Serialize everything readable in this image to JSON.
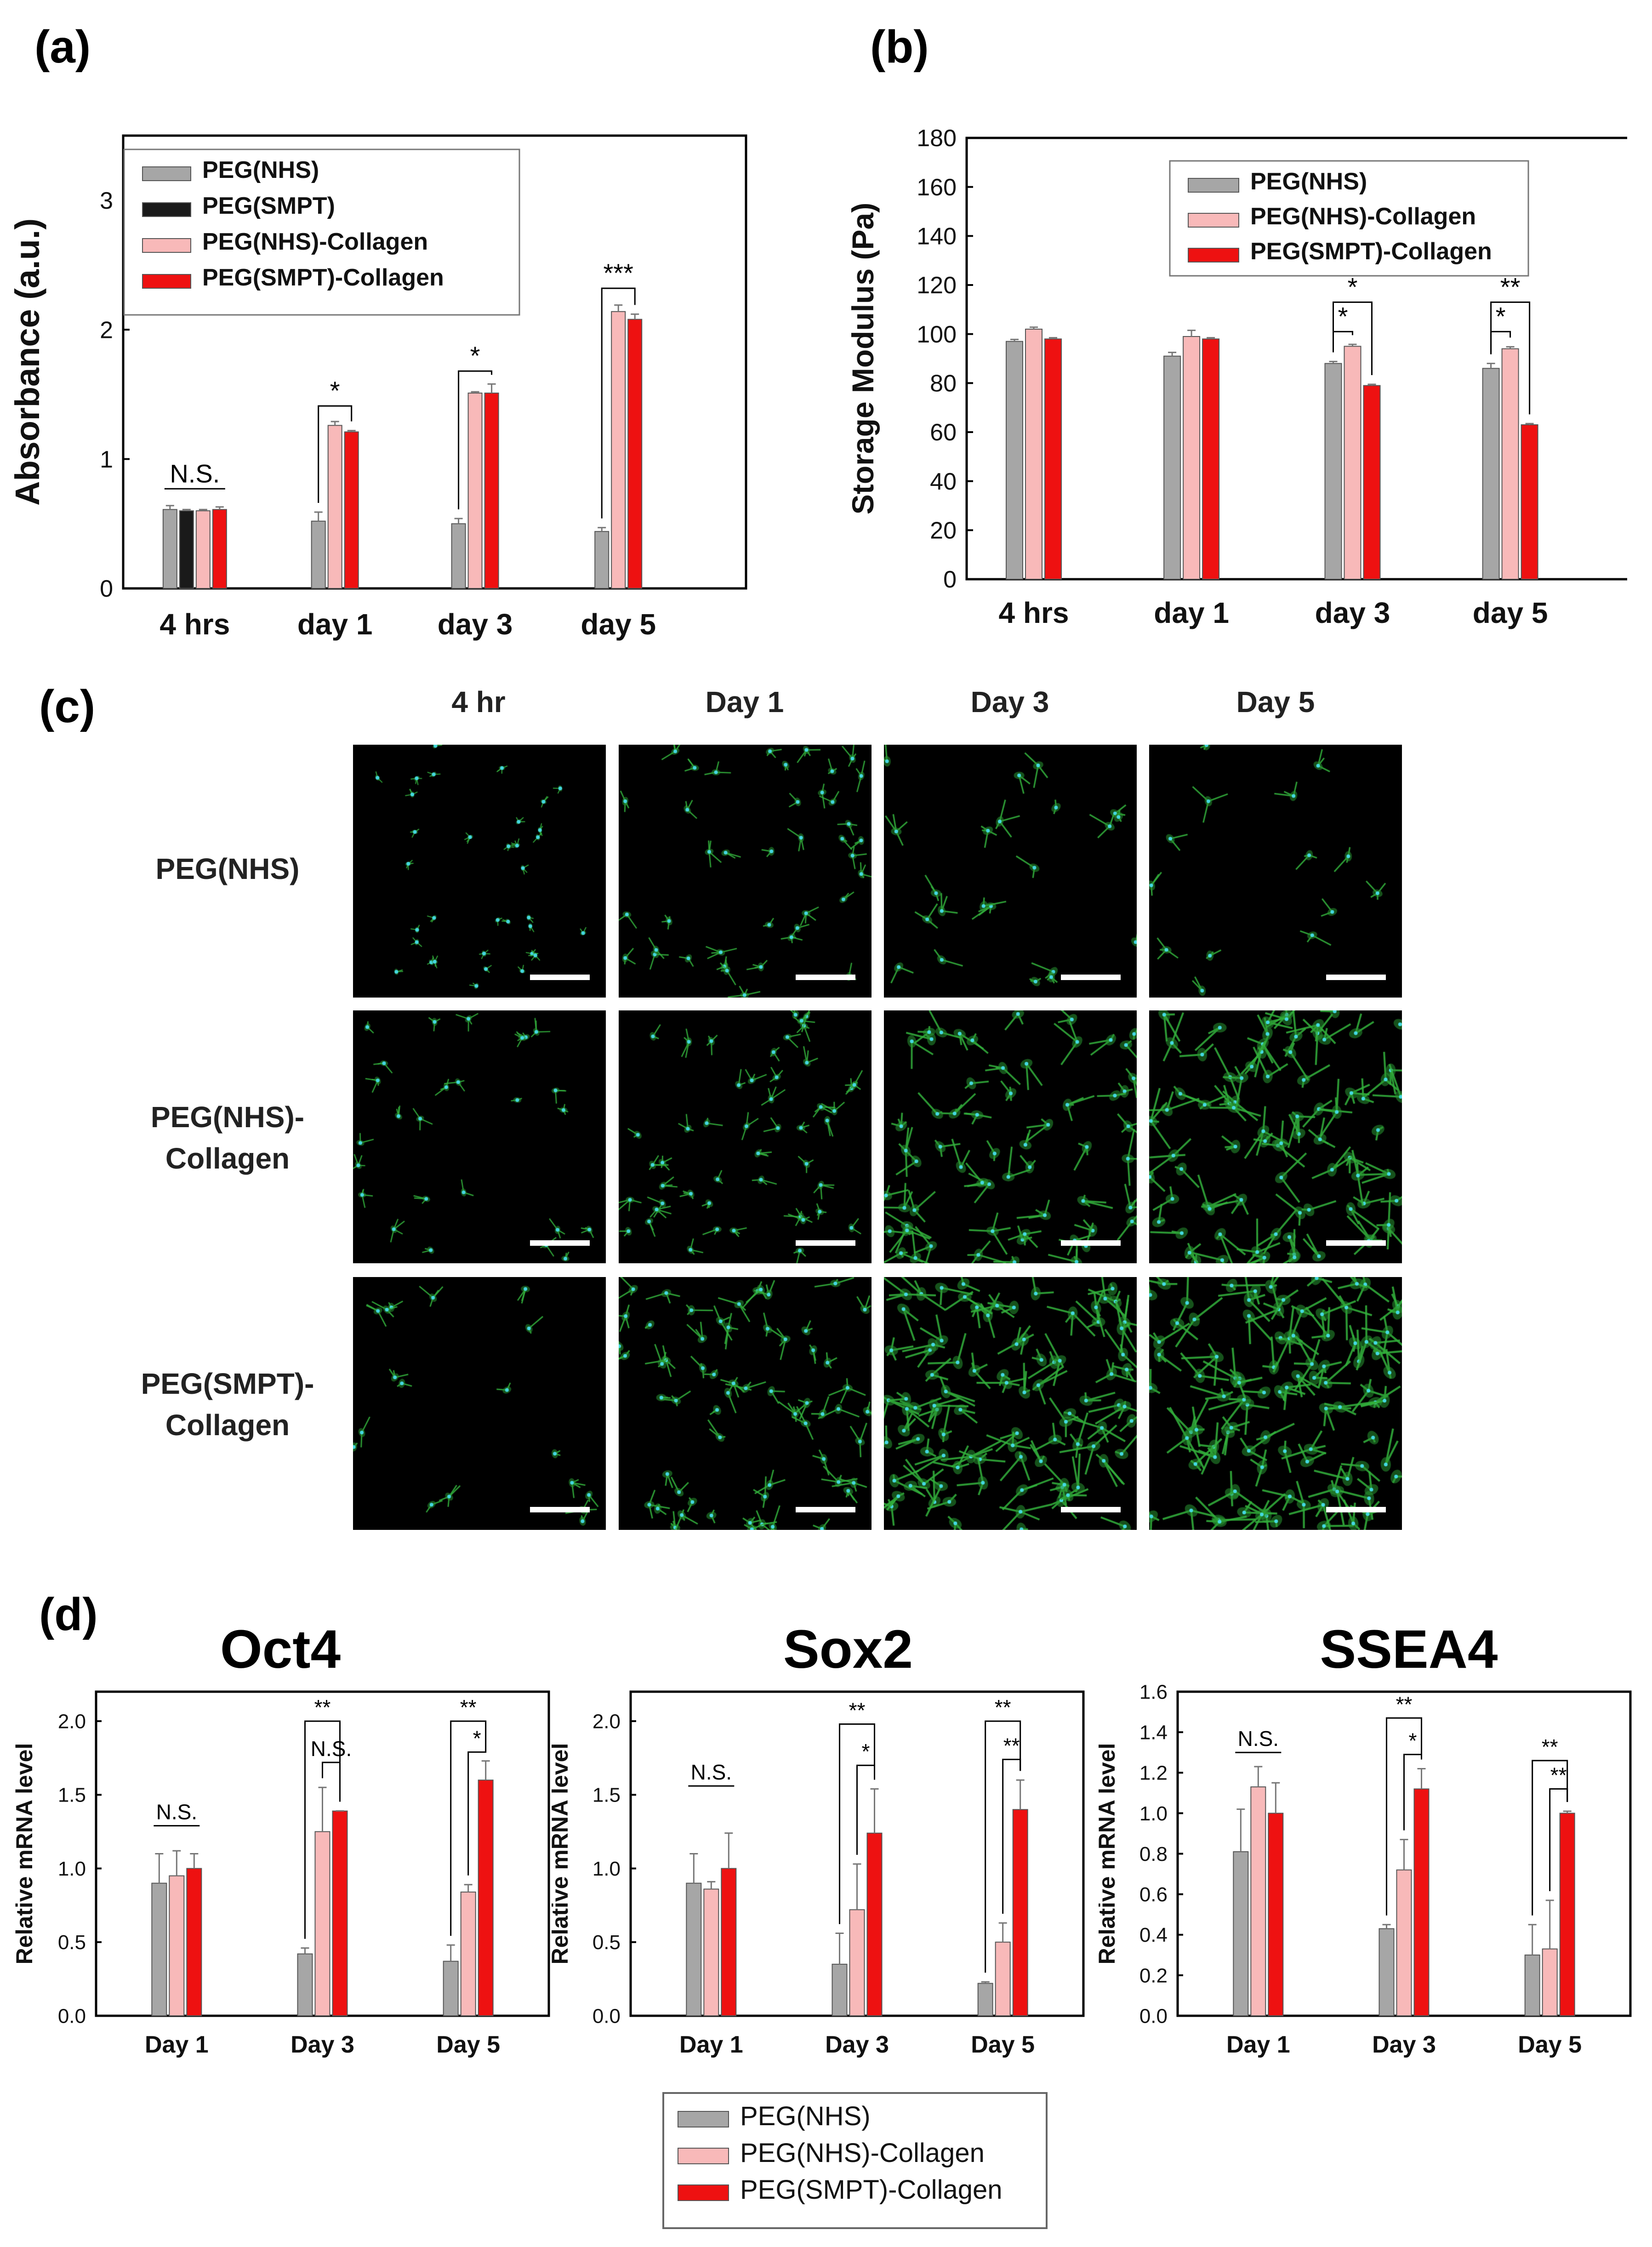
{
  "panels": {
    "a": "(a)",
    "b": "(b)",
    "c": "(c)",
    "d": "(d)"
  },
  "colors": {
    "peg_nhs": "#a6a6a6",
    "peg_smpt": "#1a1a1a",
    "peg_nhs_collagen": "#f8b9b9",
    "peg_smpt_collagen": "#ee1111",
    "cell_green": "#2fae3a",
    "nucleus_cyan": "#3fd6e6"
  },
  "chart_data": [
    {
      "id": "a",
      "type": "bar",
      "categories": [
        "4 hrs",
        "day 1",
        "day 3",
        "day 5"
      ],
      "ylabel": "Absorbance (a.u.)",
      "xlabel": "",
      "ylim": [
        0,
        3.5
      ],
      "yticks": [
        0,
        1,
        2,
        3
      ],
      "ytick_labels": [
        "0",
        "1",
        "2",
        "3"
      ],
      "legend": "top-left",
      "series": [
        {
          "name": "PEG(NHS)",
          "color": "#a6a6a6",
          "values": [
            0.61,
            0.52,
            0.5,
            0.44
          ],
          "errors": [
            0.03,
            0.07,
            0.04,
            0.03
          ]
        },
        {
          "name": "PEG(SMPT)",
          "color": "#1a1a1a",
          "values": [
            0.6,
            null,
            null,
            null
          ],
          "errors": [
            0.01,
            null,
            null,
            null
          ]
        },
        {
          "name": "PEG(NHS)-Collagen",
          "color": "#f8b9b9",
          "values": [
            0.6,
            1.26,
            1.51,
            2.14
          ],
          "errors": [
            0.01,
            0.03,
            0.01,
            0.05
          ]
        },
        {
          "name": "PEG(SMPT)-Collagen",
          "color": "#ee1111",
          "values": [
            0.61,
            1.21,
            1.51,
            2.08
          ],
          "errors": [
            0.02,
            0.01,
            0.07,
            0.04
          ]
        }
      ],
      "annotations": [
        {
          "type": "line",
          "text": "N.S.",
          "group": 0,
          "from": 0,
          "to": 3,
          "y": 0.77
        },
        {
          "type": "bracket",
          "text": "*",
          "group": 1,
          "from": 0,
          "to": 2,
          "y": 1.41
        },
        {
          "type": "bracket",
          "text": "*",
          "group": 1,
          "from": 0,
          "to": 3,
          "y": 1.63
        },
        {
          "type": "bracket",
          "text": "*",
          "group": 2,
          "from": 0,
          "to": 2,
          "y": 1.68
        },
        {
          "type": "bracket",
          "text": "*",
          "group": 2,
          "from": 0,
          "to": 3,
          "y": 1.9
        },
        {
          "type": "bracket",
          "text": "***",
          "group": 3,
          "from": 0,
          "to": 2,
          "y": 2.32
        },
        {
          "type": "bracket",
          "text": "***",
          "group": 3,
          "from": 0,
          "to": 3,
          "y": 2.6
        }
      ]
    },
    {
      "id": "b",
      "type": "bar",
      "categories": [
        "4 hrs",
        "day 1",
        "day 3",
        "day 5"
      ],
      "ylabel": "Storage Modulus (Pa)",
      "xlabel": "",
      "ylim": [
        0,
        180
      ],
      "yticks": [
        0,
        20,
        40,
        60,
        80,
        100,
        120,
        140,
        160,
        180
      ],
      "ytick_labels": [
        "0",
        "20",
        "40",
        "60",
        "80",
        "100",
        "120",
        "140",
        "160",
        "180"
      ],
      "legend": "top-right",
      "series": [
        {
          "name": "PEG(NHS)",
          "color": "#a6a6a6",
          "values": [
            97,
            91,
            88,
            86
          ],
          "errors": [
            0.8,
            1.5,
            0.8,
            2
          ]
        },
        {
          "name": "PEG(NHS)-Collagen",
          "color": "#f8b9b9",
          "values": [
            102,
            99,
            95,
            94
          ],
          "errors": [
            0.8,
            2.5,
            0.8,
            0.8
          ]
        },
        {
          "name": "PEG(SMPT)-Collagen",
          "color": "#ee1111",
          "values": [
            98,
            98,
            79,
            63
          ],
          "errors": [
            0.5,
            0.5,
            0.5,
            0.5
          ]
        }
      ],
      "annotations": [
        {
          "type": "bracket",
          "text": "*",
          "group": 2,
          "from": 0,
          "to": 1,
          "y": 101
        },
        {
          "type": "bracket",
          "text": "*",
          "group": 2,
          "from": 0,
          "to": 2,
          "y": 113
        },
        {
          "type": "bracket",
          "text": "*",
          "group": 3,
          "from": 0,
          "to": 1,
          "y": 101
        },
        {
          "type": "bracket",
          "text": "**",
          "group": 3,
          "from": 0,
          "to": 2,
          "y": 113
        }
      ]
    },
    {
      "id": "d1",
      "type": "bar",
      "title": "Oct4",
      "categories": [
        "Day 1",
        "Day 3",
        "Day 5"
      ],
      "ylabel": "Relative mRNA level",
      "xlabel": "",
      "ylim": [
        0,
        2.2
      ],
      "yticks": [
        0,
        0.5,
        1,
        1.5,
        2
      ],
      "ytick_labels": [
        "0.0",
        "0.5",
        "1.0",
        "1.5",
        "2.0"
      ],
      "series": [
        {
          "name": "PEG(NHS)",
          "color": "#a6a6a6",
          "values": [
            0.9,
            0.42,
            0.37
          ],
          "errors": [
            0.2,
            0.04,
            0.11
          ]
        },
        {
          "name": "PEG(NHS)-Collagen",
          "color": "#f8b9b9",
          "values": [
            0.95,
            1.25,
            0.84
          ],
          "errors": [
            0.17,
            0.3,
            0.05
          ]
        },
        {
          "name": "PEG(SMPT)-Collagen",
          "color": "#ee1111",
          "values": [
            1.0,
            1.39,
            1.6
          ],
          "errors": [
            0.1,
            0.001,
            0.13
          ]
        }
      ],
      "annotations": [
        {
          "type": "line",
          "text": "N.S.",
          "group": 0,
          "from": 0,
          "to": 2,
          "y": 1.29
        },
        {
          "type": "bracket",
          "text": "N.S.",
          "group": 1,
          "from": 1,
          "to": 2,
          "y": 1.72
        },
        {
          "type": "bracket",
          "text": "**",
          "group": 1,
          "from": 0,
          "to": 2,
          "y": 2.0
        },
        {
          "type": "bracket",
          "text": "*",
          "group": 2,
          "from": 1,
          "to": 2,
          "y": 1.79
        },
        {
          "type": "bracket",
          "text": "**",
          "group": 2,
          "from": 0,
          "to": 2,
          "y": 2.0
        }
      ]
    },
    {
      "id": "d2",
      "type": "bar",
      "title": "Sox2",
      "categories": [
        "Day 1",
        "Day 3",
        "Day 5"
      ],
      "ylabel": "Relative mRNA level",
      "xlabel": "",
      "ylim": [
        0,
        2.2
      ],
      "yticks": [
        0,
        0.5,
        1,
        1.5,
        2
      ],
      "ytick_labels": [
        "0.0",
        "0.5",
        "1.0",
        "1.5",
        "2.0"
      ],
      "series": [
        {
          "name": "PEG(NHS)",
          "color": "#a6a6a6",
          "values": [
            0.9,
            0.35,
            0.22
          ],
          "errors": [
            0.2,
            0.21,
            0.01
          ]
        },
        {
          "name": "PEG(NHS)-Collagen",
          "color": "#f8b9b9",
          "values": [
            0.86,
            0.72,
            0.5
          ],
          "errors": [
            0.05,
            0.31,
            0.13
          ]
        },
        {
          "name": "PEG(SMPT)-Collagen",
          "color": "#ee1111",
          "values": [
            1.0,
            1.24,
            1.4
          ],
          "errors": [
            0.24,
            0.3,
            0.2
          ]
        }
      ],
      "annotations": [
        {
          "type": "line",
          "text": "N.S.",
          "group": 0,
          "from": 0,
          "to": 2,
          "y": 1.56
        },
        {
          "type": "bracket",
          "text": "*",
          "group": 1,
          "from": 1,
          "to": 2,
          "y": 1.7
        },
        {
          "type": "bracket",
          "text": "**",
          "group": 1,
          "from": 0,
          "to": 2,
          "y": 1.98
        },
        {
          "type": "bracket",
          "text": "**",
          "group": 2,
          "from": 1,
          "to": 2,
          "y": 1.74
        },
        {
          "type": "bracket",
          "text": "**",
          "group": 2,
          "from": 0,
          "to": 2,
          "y": 2.0
        }
      ]
    },
    {
      "id": "d3",
      "type": "bar",
      "title": "SSEA4",
      "categories": [
        "Day 1",
        "Day 3",
        "Day 5"
      ],
      "ylabel": "Relative mRNA level",
      "xlabel": "",
      "ylim": [
        0,
        1.6
      ],
      "yticks": [
        0,
        0.2,
        0.4,
        0.6,
        0.8,
        1.0,
        1.2,
        1.4,
        1.6
      ],
      "ytick_labels": [
        "0.0",
        "0.2",
        "0.4",
        "0.6",
        "0.8",
        "1.0",
        "1.2",
        "1.4",
        "1.6"
      ],
      "series": [
        {
          "name": "PEG(NHS)",
          "color": "#a6a6a6",
          "values": [
            0.81,
            0.43,
            0.3
          ],
          "errors": [
            0.21,
            0.02,
            0.15
          ]
        },
        {
          "name": "PEG(NHS)-Collagen",
          "color": "#f8b9b9",
          "values": [
            1.13,
            0.72,
            0.33
          ],
          "errors": [
            0.1,
            0.15,
            0.24
          ]
        },
        {
          "name": "PEG(SMPT)-Collagen",
          "color": "#ee1111",
          "values": [
            1.0,
            1.12,
            1.0
          ],
          "errors": [
            0.15,
            0.1,
            0.01
          ]
        }
      ],
      "annotations": [
        {
          "type": "line",
          "text": "N.S.",
          "group": 0,
          "from": 0,
          "to": 2,
          "y": 1.3
        },
        {
          "type": "bracket",
          "text": "*",
          "group": 1,
          "from": 1,
          "to": 2,
          "y": 1.29
        },
        {
          "type": "bracket",
          "text": "**",
          "group": 1,
          "from": 0,
          "to": 2,
          "y": 1.47
        },
        {
          "type": "bracket",
          "text": "**",
          "group": 2,
          "from": 1,
          "to": 2,
          "y": 1.12
        },
        {
          "type": "bracket",
          "text": "**",
          "group": 2,
          "from": 0,
          "to": 2,
          "y": 1.26
        }
      ]
    }
  ],
  "legend_d": {
    "items": [
      {
        "name": "PEG(NHS)",
        "color": "#a6a6a6"
      },
      {
        "name": "PEG(NHS)-Collagen",
        "color": "#f8b9b9"
      },
      {
        "name": "PEG(SMPT)-Collagen",
        "color": "#ee1111"
      }
    ]
  },
  "microscopy": {
    "columns": [
      "4 hr",
      "Day 1",
      "Day 3",
      "Day 5"
    ],
    "rows": [
      {
        "line1": "PEG(NHS)",
        "line2": ""
      },
      {
        "line1": "PEG(NHS)-",
        "line2": "Collagen"
      },
      {
        "line1": "PEG(SMPT)-",
        "line2": "Collagen"
      }
    ]
  }
}
